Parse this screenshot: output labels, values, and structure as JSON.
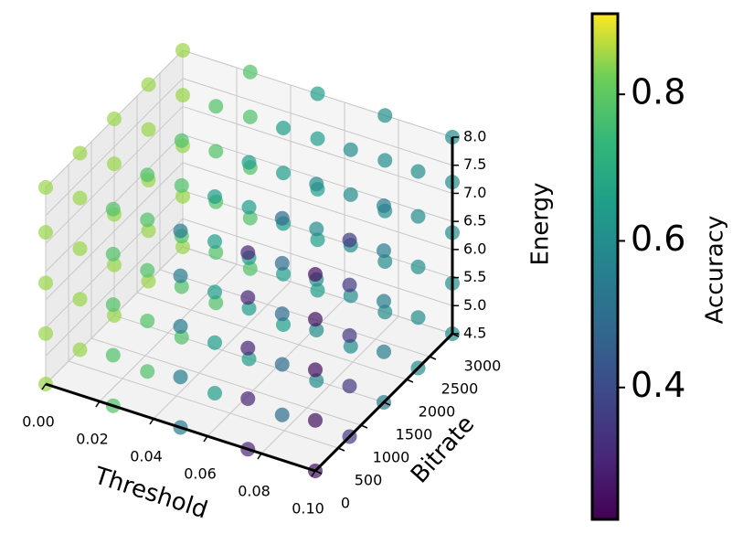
{
  "chart_data": {
    "type": "scatter3d",
    "xlabel": "Threshold",
    "ylabel": "Bitrate",
    "zlabel": "Energy",
    "colorbar_label": "Accuracy",
    "colormap": "viridis",
    "grid": true,
    "xlim": [
      0,
      0.1
    ],
    "ylim": [
      0,
      3000
    ],
    "zlim": [
      4.5,
      8.0
    ],
    "clim": [
      0.22,
      0.91
    ],
    "xticks": [
      {
        "value": 0,
        "label": "0.00"
      },
      0.02,
      0.04,
      0.06,
      0.08,
      {
        "value": 0.1,
        "label": "0.10"
      }
    ],
    "yticks": [
      0,
      500,
      1000,
      1500,
      2000,
      2500,
      3000
    ],
    "zticks": [
      4.5,
      {
        "value": 5,
        "label": "5.0"
      },
      5.5,
      {
        "value": 6,
        "label": "6.0"
      },
      6.5,
      {
        "value": 7,
        "label": "7.0"
      },
      7.5,
      {
        "value": 8,
        "label": "8.0"
      }
    ],
    "cticks": [
      0.4,
      0.6,
      0.8
    ],
    "x": [
      0,
      0,
      0,
      0,
      0,
      0,
      0,
      0,
      0,
      0,
      0,
      0,
      0,
      0,
      0,
      0,
      0,
      0,
      0,
      0,
      0,
      0,
      0,
      0,
      0,
      0.025,
      0.025,
      0.025,
      0.025,
      0.025,
      0.025,
      0.025,
      0.025,
      0.025,
      0.025,
      0.025,
      0.025,
      0.025,
      0.025,
      0.025,
      0.025,
      0.025,
      0.025,
      0.025,
      0.025,
      0.025,
      0.025,
      0.025,
      0.025,
      0.025,
      0.05,
      0.05,
      0.05,
      0.05,
      0.05,
      0.05,
      0.05,
      0.05,
      0.05,
      0.05,
      0.05,
      0.05,
      0.05,
      0.05,
      0.05,
      0.05,
      0.05,
      0.05,
      0.05,
      0.05,
      0.05,
      0.05,
      0.05,
      0.05,
      0.05,
      0.075,
      0.075,
      0.075,
      0.075,
      0.075,
      0.075,
      0.075,
      0.075,
      0.075,
      0.075,
      0.075,
      0.075,
      0.075,
      0.075,
      0.075,
      0.075,
      0.075,
      0.075,
      0.075,
      0.075,
      0.075,
      0.075,
      0.075,
      0.075,
      0.075,
      0.1,
      0.1,
      0.1,
      0.1,
      0.1,
      0.1,
      0.1,
      0.1,
      0.1,
      0.1,
      0.1,
      0.1,
      0.1,
      0.1,
      0.1,
      0.1,
      0.1,
      0.1,
      0.1,
      0.1,
      0.1,
      0.1,
      0.1,
      0.1,
      0.1
    ],
    "y": [
      3000,
      3000,
      3000,
      3000,
      3000,
      2250,
      2250,
      2250,
      2250,
      2250,
      1500,
      1500,
      1500,
      1500,
      1500,
      750,
      750,
      750,
      750,
      750,
      0,
      0,
      0,
      0,
      0,
      3000,
      3000,
      3000,
      3000,
      3000,
      2250,
      2250,
      2250,
      2250,
      2250,
      1500,
      1500,
      1500,
      1500,
      1500,
      750,
      750,
      750,
      750,
      750,
      0,
      0,
      0,
      0,
      0,
      3000,
      3000,
      3000,
      3000,
      3000,
      2250,
      2250,
      2250,
      2250,
      2250,
      1500,
      1500,
      1500,
      1500,
      1500,
      750,
      750,
      750,
      750,
      750,
      0,
      0,
      0,
      0,
      0,
      3000,
      3000,
      3000,
      3000,
      3000,
      2250,
      2250,
      2250,
      2250,
      2250,
      1500,
      1500,
      1500,
      1500,
      1500,
      750,
      750,
      750,
      750,
      750,
      0,
      0,
      0,
      0,
      0,
      3000,
      3000,
      3000,
      3000,
      3000,
      2250,
      2250,
      2250,
      2250,
      2250,
      1500,
      1500,
      1500,
      1500,
      1500,
      750,
      750,
      750,
      750,
      750,
      0,
      0,
      0,
      0,
      0
    ],
    "z": [
      4.5,
      5.4,
      6.3,
      7.2,
      8.0,
      4.5,
      5.4,
      6.3,
      7.2,
      8.0,
      4.5,
      5.4,
      6.3,
      7.2,
      8.0,
      4.5,
      5.4,
      6.3,
      7.2,
      8.0,
      4.5,
      5.4,
      6.3,
      7.2,
      8.0,
      4.5,
      5.4,
      6.3,
      7.2,
      8.0,
      4.5,
      5.4,
      6.3,
      7.2,
      8.0,
      4.5,
      5.4,
      6.3,
      7.2,
      8.0,
      4.5,
      5.4,
      6.3,
      7.2,
      8.0,
      4.5,
      5.4,
      6.3,
      7.2,
      8.0,
      4.5,
      5.4,
      6.3,
      7.2,
      8.0,
      4.5,
      5.4,
      6.3,
      7.2,
      8.0,
      4.5,
      5.4,
      6.3,
      7.2,
      8.0,
      4.5,
      5.4,
      6.3,
      7.2,
      8.0,
      4.5,
      5.4,
      6.3,
      7.2,
      8.0,
      4.5,
      5.4,
      6.3,
      7.2,
      8.0,
      4.5,
      5.4,
      6.3,
      7.2,
      8.0,
      4.5,
      5.4,
      6.3,
      7.2,
      8.0,
      4.5,
      5.4,
      6.3,
      7.2,
      8.0,
      4.5,
      5.4,
      6.3,
      7.2,
      8.0,
      4.5,
      5.4,
      6.3,
      7.2,
      8.0,
      4.5,
      5.4,
      6.3,
      7.2,
      8.0,
      4.5,
      5.4,
      6.3,
      7.2,
      8.0,
      4.5,
      5.4,
      6.3,
      7.2,
      8.0,
      4.5,
      5.4,
      6.3,
      7.2,
      8.0
    ],
    "values": [
      0.85,
      0.85,
      0.85,
      0.85,
      0.85,
      0.85,
      0.85,
      0.85,
      0.85,
      0.85,
      0.85,
      0.85,
      0.85,
      0.85,
      0.85,
      0.85,
      0.85,
      0.85,
      0.85,
      0.85,
      0.85,
      0.85,
      0.85,
      0.85,
      0.85,
      0.78,
      0.78,
      0.78,
      0.78,
      0.78,
      0.78,
      0.78,
      0.78,
      0.78,
      0.78,
      0.78,
      0.78,
      0.78,
      0.78,
      0.78,
      0.78,
      0.78,
      0.78,
      0.78,
      0.78,
      0.78,
      0.78,
      0.78,
      0.78,
      0.78,
      0.65,
      0.65,
      0.65,
      0.65,
      0.65,
      0.65,
      0.65,
      0.65,
      0.65,
      0.65,
      0.65,
      0.65,
      0.65,
      0.65,
      0.65,
      0.65,
      0.65,
      0.65,
      0.65,
      0.65,
      0.55,
      0.55,
      0.55,
      0.55,
      0.55,
      0.6,
      0.6,
      0.6,
      0.6,
      0.6,
      0.6,
      0.6,
      0.6,
      0.6,
      0.6,
      0.6,
      0.6,
      0.6,
      0.6,
      0.6,
      0.5,
      0.5,
      0.5,
      0.5,
      0.5,
      0.3,
      0.3,
      0.3,
      0.3,
      0.3,
      0.6,
      0.6,
      0.6,
      0.6,
      0.6,
      0.6,
      0.6,
      0.6,
      0.6,
      0.6,
      0.55,
      0.55,
      0.55,
      0.55,
      0.55,
      0.35,
      0.35,
      0.35,
      0.35,
      0.35,
      0.25,
      0.25,
      0.25,
      0.25,
      0.25
    ]
  }
}
